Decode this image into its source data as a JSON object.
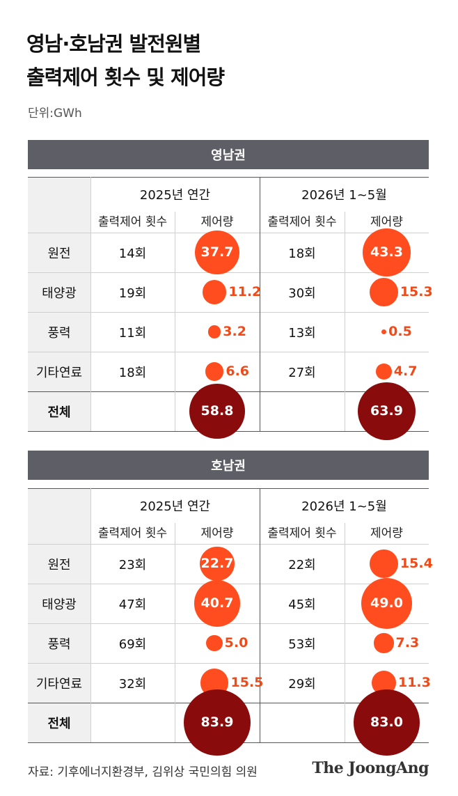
{
  "title_line1": "영남·호남권 발전원별",
  "title_line2": "출력제어 횟수 및 제어량",
  "unit": "단위:GWh",
  "source": "자료: 기후에너지환경부, 김위상 국민의힘 의원",
  "logo": "The JoongAng",
  "colors": {
    "band": "#5e5e66",
    "bubble": "#ff4d1f",
    "bubble_total": "#8a0b0b",
    "value_label": "#f04a18",
    "label_on_bubble": "#ffffff"
  },
  "chart_data": [
    {
      "type": "table",
      "region": "영남권",
      "periods": [
        "2025년 연간",
        "2026년 1~5월"
      ],
      "subheaders": [
        "출력제어 횟수",
        "제어량"
      ],
      "rows": [
        {
          "source": "원전",
          "count_2025": "14회",
          "amount_2025": "37.7",
          "v2025": 37.7,
          "count_2026": "18회",
          "amount_2026": "43.3",
          "v2026": 43.3
        },
        {
          "source": "태양광",
          "count_2025": "19회",
          "amount_2025": "11.2",
          "v2025": 11.2,
          "count_2026": "30회",
          "amount_2026": "15.3",
          "v2026": 15.3
        },
        {
          "source": "풍력",
          "count_2025": "11회",
          "amount_2025": "3.2",
          "v2025": 3.2,
          "count_2026": "13회",
          "amount_2026": "0.5",
          "v2026": 0.5
        },
        {
          "source": "기타연료",
          "count_2025": "18회",
          "amount_2025": "6.6",
          "v2025": 6.6,
          "count_2026": "27회",
          "amount_2026": "4.7",
          "v2026": 4.7
        },
        {
          "source": "전체",
          "count_2025": "",
          "amount_2025": "58.8",
          "v2025": 58.8,
          "count_2026": "",
          "amount_2026": "63.9",
          "v2026": 63.9,
          "total": true
        }
      ]
    },
    {
      "type": "table",
      "region": "호남권",
      "periods": [
        "2025년 연간",
        "2026년 1~5월"
      ],
      "subheaders": [
        "출력제어 횟수",
        "제어량"
      ],
      "rows": [
        {
          "source": "원전",
          "count_2025": "23회",
          "amount_2025": "22.7",
          "v2025": 22.7,
          "count_2026": "22회",
          "amount_2026": "15.4",
          "v2026": 15.4
        },
        {
          "source": "태양광",
          "count_2025": "47회",
          "amount_2025": "40.7",
          "v2025": 40.7,
          "count_2026": "45회",
          "amount_2026": "49.0",
          "v2026": 49.0
        },
        {
          "source": "풍력",
          "count_2025": "69회",
          "amount_2025": "5.0",
          "v2025": 5.0,
          "count_2026": "53회",
          "amount_2026": "7.3",
          "v2026": 7.3
        },
        {
          "source": "기타연료",
          "count_2025": "32회",
          "amount_2025": "15.5",
          "v2025": 15.5,
          "count_2026": "29회",
          "amount_2026": "11.3",
          "v2026": 11.3
        },
        {
          "source": "전체",
          "count_2025": "",
          "amount_2025": "83.9",
          "v2025": 83.9,
          "count_2026": "",
          "amount_2026": "83.0",
          "v2026": 83.0,
          "total": true
        }
      ]
    }
  ]
}
